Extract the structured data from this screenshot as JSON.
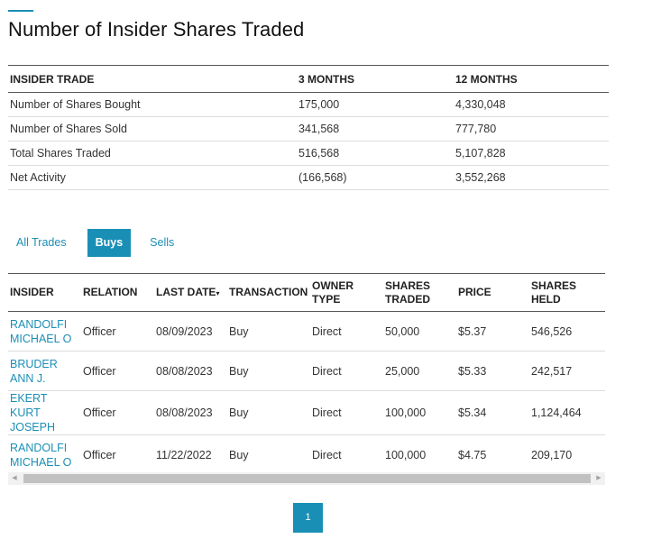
{
  "page": {
    "title": "Number of Insider Shares Traded"
  },
  "summary": {
    "headers": [
      "INSIDER TRADE",
      "3 MONTHS",
      "12 MONTHS"
    ],
    "rows": [
      [
        "Number of Shares Bought",
        "175,000",
        "4,330,048"
      ],
      [
        "Number of Shares Sold",
        "341,568",
        "777,780"
      ],
      [
        "Total Shares Traded",
        "516,568",
        "5,107,828"
      ],
      [
        "Net Activity",
        "(166,568)",
        "3,552,268"
      ]
    ]
  },
  "tabs": {
    "all": "All Trades",
    "buys": "Buys",
    "sells": "Sells",
    "active": "buys"
  },
  "trades": {
    "headers": {
      "insider": "INSIDER",
      "relation": "RELATION",
      "last_date": "LAST DATE",
      "sort_icon": "▾",
      "transaction": "TRANSACTION",
      "owner_type": "OWNER TYPE",
      "shares_traded": "SHARES TRADED",
      "price": "PRICE",
      "shares_held": "SHARES HELD"
    },
    "rows": [
      [
        "RANDOLFI MICHAEL O",
        "Officer",
        "08/09/2023",
        "Buy",
        "Direct",
        "50,000",
        "$5.37",
        "546,526"
      ],
      [
        "BRUDER ANN J.",
        "Officer",
        "08/08/2023",
        "Buy",
        "Direct",
        "25,000",
        "$5.33",
        "242,517"
      ],
      [
        "EKERT KURT JOSEPH",
        "Officer",
        "08/08/2023",
        "Buy",
        "Direct",
        "100,000",
        "$5.34",
        "1,124,464"
      ],
      [
        "RANDOLFI MICHAEL O",
        "Officer",
        "11/22/2022",
        "Buy",
        "Direct",
        "100,000",
        "$4.75",
        "209,170"
      ]
    ]
  },
  "scrollbar": {
    "left_arrow": "◀",
    "right_arrow": "▶"
  },
  "pagination": {
    "current": "1"
  },
  "colors": {
    "accent": "#1a8fb5"
  }
}
